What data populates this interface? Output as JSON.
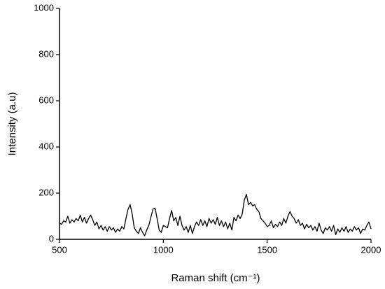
{
  "chart_data": {
    "type": "line",
    "x_label": "Raman shift (cm⁻¹)",
    "y_label": "Intensity (a.u)",
    "xlim": [
      500,
      2000
    ],
    "xticks": [
      500,
      1000,
      1500,
      2000
    ],
    "ylim": [
      0,
      1000
    ],
    "yticks": [
      0,
      200,
      400,
      600,
      800,
      1000
    ],
    "x": [
      500,
      510,
      520,
      530,
      540,
      550,
      560,
      570,
      580,
      590,
      600,
      610,
      620,
      630,
      640,
      650,
      660,
      670,
      680,
      690,
      700,
      710,
      720,
      730,
      740,
      750,
      760,
      770,
      780,
      790,
      800,
      810,
      820,
      830,
      840,
      850,
      860,
      870,
      880,
      890,
      900,
      910,
      920,
      930,
      940,
      950,
      960,
      970,
      980,
      990,
      1000,
      1010,
      1020,
      1030,
      1040,
      1050,
      1060,
      1070,
      1080,
      1090,
      1100,
      1110,
      1120,
      1130,
      1140,
      1150,
      1160,
      1170,
      1180,
      1190,
      1200,
      1210,
      1220,
      1230,
      1240,
      1250,
      1260,
      1270,
      1280,
      1290,
      1300,
      1310,
      1320,
      1330,
      1340,
      1350,
      1360,
      1370,
      1380,
      1390,
      1400,
      1410,
      1420,
      1430,
      1440,
      1450,
      1460,
      1470,
      1480,
      1490,
      1500,
      1510,
      1520,
      1530,
      1540,
      1550,
      1560,
      1570,
      1580,
      1590,
      1600,
      1610,
      1620,
      1630,
      1640,
      1650,
      1660,
      1670,
      1680,
      1690,
      1700,
      1710,
      1720,
      1730,
      1740,
      1750,
      1760,
      1770,
      1780,
      1790,
      1800,
      1810,
      1820,
      1830,
      1840,
      1850,
      1860,
      1870,
      1880,
      1890,
      1900,
      1910,
      1920,
      1930,
      1940,
      1950,
      1960,
      1970,
      1980,
      1990,
      2000
    ],
    "series": [
      {
        "color": "#000000",
        "values": [
          70,
          65,
          80,
          75,
          100,
          70,
          85,
          75,
          90,
          80,
          105,
          75,
          95,
          70,
          90,
          105,
          85,
          60,
          75,
          45,
          60,
          40,
          55,
          35,
          55,
          40,
          50,
          30,
          45,
          35,
          55,
          45,
          90,
          130,
          150,
          110,
          50,
          35,
          25,
          50,
          30,
          15,
          40,
          60,
          95,
          130,
          135,
          90,
          40,
          30,
          60,
          55,
          50,
          90,
          125,
          80,
          95,
          60,
          100,
          60,
          40,
          55,
          30,
          60,
          25,
          55,
          75,
          60,
          85,
          60,
          80,
          55,
          90,
          70,
          85,
          65,
          95,
          60,
          80,
          55,
          75,
          45,
          70,
          40,
          95,
          80,
          105,
          90,
          110,
          170,
          195,
          150,
          160,
          145,
          150,
          130,
          120,
          90,
          80,
          70,
          55,
          60,
          80,
          50,
          65,
          55,
          75,
          60,
          90,
          70,
          100,
          120,
          100,
          90,
          70,
          85,
          60,
          70,
          45,
          65,
          50,
          60,
          40,
          55,
          35,
          70,
          40,
          25,
          50,
          40,
          55,
          35,
          60,
          20,
          45,
          30,
          50,
          35,
          55,
          30,
          45,
          35,
          55,
          40,
          50,
          25,
          45,
          40,
          60,
          75,
          45
        ]
      }
    ]
  }
}
